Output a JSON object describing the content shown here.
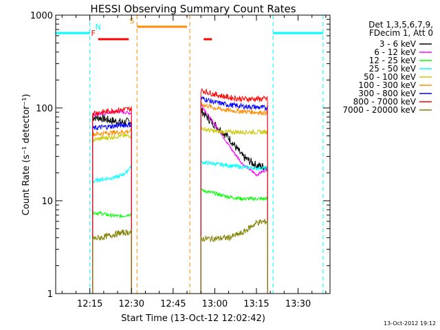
{
  "chart_data": {
    "type": "line",
    "title": "HESSI Observing Summary Count Rates",
    "xlabel": "Start Time (13-Oct-12 12:02:42)",
    "ylabel": "Count Rate (s⁻¹ detector⁻¹)",
    "yscale": "log",
    "ylim": [
      1,
      1000
    ],
    "xlim": [
      "12:02:42",
      "13:41:30"
    ],
    "yticks": [
      {
        "value": 1,
        "label": "1"
      },
      {
        "value": 10,
        "label": "10"
      },
      {
        "value": 100,
        "label": "100"
      },
      {
        "value": 1000,
        "label": "1000"
      }
    ],
    "xticks": [
      "12:15",
      "12:30",
      "12:45",
      "13:00",
      "13:15",
      "13:30"
    ],
    "legend_header": [
      "Det 1,3,5,6,7,9,",
      "FDecim 1, Att 0"
    ],
    "legend_position": "right",
    "timestamp": "13-Oct-2012 19:12",
    "series": [
      {
        "name": "3 - 6 keV",
        "color": "#000000",
        "segments": [
          {
            "x": [
              "12:16",
              "12:19",
              "12:21",
              "12:24",
              "12:27",
              "12:30"
            ],
            "y": [
              80,
              78,
              75,
              72,
              70,
              72
            ]
          },
          {
            "x": [
              "12:55",
              "12:58",
              "13:01",
              "13:05",
              "13:10",
              "13:15",
              "13:19"
            ],
            "y": [
              95,
              75,
              62,
              48,
              30,
              24,
              23
            ]
          }
        ]
      },
      {
        "name": "6 - 12 keV",
        "color": "#ff00ff",
        "segments": [
          {
            "x": [
              "12:16",
              "12:19",
              "12:21",
              "12:24",
              "12:27",
              "12:30"
            ],
            "y": [
              85,
              86,
              88,
              92,
              90,
              88
            ]
          },
          {
            "x": [
              "12:55",
              "12:58",
              "13:02",
              "13:06",
              "13:10",
              "13:15",
              "13:19"
            ],
            "y": [
              110,
              80,
              55,
              36,
              25,
              19,
              22
            ]
          }
        ]
      },
      {
        "name": "12 - 25 keV",
        "color": "#00ff00",
        "segments": [
          {
            "x": [
              "12:16",
              "12:19",
              "12:22",
              "12:26",
              "12:30"
            ],
            "y": [
              7.5,
              7.3,
              7.0,
              6.8,
              7.2
            ]
          },
          {
            "x": [
              "12:55",
              "13:00",
              "13:05",
              "13:10",
              "13:15",
              "13:19"
            ],
            "y": [
              13,
              12,
              11,
              10.5,
              10.5,
              10.5
            ]
          }
        ]
      },
      {
        "name": "25 - 50 keV",
        "color": "#00ffff",
        "segments": [
          {
            "x": [
              "12:16",
              "12:19",
              "12:22",
              "12:25",
              "12:28",
              "12:30"
            ],
            "y": [
              16,
              17,
              17.5,
              18,
              20,
              24
            ]
          },
          {
            "x": [
              "12:55",
              "13:00",
              "13:05",
              "13:10",
              "13:15",
              "13:19"
            ],
            "y": [
              26,
              25,
              24,
              23,
              22.5,
              22.5
            ]
          }
        ]
      },
      {
        "name": "50 - 100 keV",
        "color": "#c8c800",
        "segments": [
          {
            "x": [
              "12:16",
              "12:19",
              "12:22",
              "12:26",
              "12:30"
            ],
            "y": [
              45,
              47,
              48,
              50,
              50
            ]
          },
          {
            "x": [
              "12:55",
              "13:00",
              "13:05",
              "13:10",
              "13:15",
              "13:19"
            ],
            "y": [
              60,
              56,
              55,
              55,
              55,
              55
            ]
          }
        ]
      },
      {
        "name": "100 - 300 keV",
        "color": "#ff8c00",
        "segments": [
          {
            "x": [
              "12:16",
              "12:19",
              "12:22",
              "12:26",
              "12:30"
            ],
            "y": [
              52,
              53,
              54,
              55,
              56
            ]
          },
          {
            "x": [
              "12:55",
              "13:00",
              "13:05",
              "13:10",
              "13:15",
              "13:19"
            ],
            "y": [
              110,
              100,
              94,
              92,
              90,
              88
            ]
          }
        ]
      },
      {
        "name": "300 - 800 keV",
        "color": "#0000ff",
        "segments": [
          {
            "x": [
              "12:16",
              "12:19",
              "12:22",
              "12:26",
              "12:30"
            ],
            "y": [
              60,
              62,
              63,
              65,
              66
            ]
          },
          {
            "x": [
              "12:55",
              "13:00",
              "13:05",
              "13:10",
              "13:15",
              "13:19"
            ],
            "y": [
              128,
              115,
              108,
              104,
              102,
              100
            ]
          }
        ]
      },
      {
        "name": "800 - 7000 keV",
        "color": "#ff0000",
        "segments": [
          {
            "x": [
              "12:16",
              "12:19",
              "12:22",
              "12:26",
              "12:30"
            ],
            "y": [
              88,
              90,
              92,
              95,
              98
            ]
          },
          {
            "x": [
              "12:55",
              "13:00",
              "13:05",
              "13:10",
              "13:15",
              "13:19"
            ],
            "y": [
              155,
              140,
              130,
              125,
              125,
              125
            ]
          }
        ]
      },
      {
        "name": "7000 - 20000 keV",
        "color": "#808000",
        "segments": [
          {
            "x": [
              "12:16",
              "12:19",
              "12:22",
              "12:26",
              "12:30"
            ],
            "y": [
              3.9,
              4.0,
              4.2,
              4.5,
              4.6
            ]
          },
          {
            "x": [
              "12:55",
              "13:00",
              "13:05",
              "13:10",
              "13:15",
              "13:19"
            ],
            "y": [
              3.9,
              3.9,
              4.0,
              4.5,
              5.8,
              6.0
            ]
          }
        ]
      }
    ],
    "flags": [
      {
        "label": "F",
        "color": "#ff0000",
        "y": 550,
        "intervals": [
          [
            "12:18",
            "12:29"
          ],
          [
            "12:56",
            "12:59"
          ]
        ]
      },
      {
        "label": "S",
        "color": "#ff8c00",
        "y": 750,
        "intervals": [
          [
            "12:32",
            "12:50"
          ]
        ]
      },
      {
        "label": "N",
        "color": "#00ffff",
        "y": 640,
        "intervals": [
          [
            "12:02",
            "12:15"
          ],
          [
            "13:21",
            "13:39"
          ]
        ]
      }
    ],
    "markers": [
      {
        "time": "12:15",
        "color": "#00ffff"
      },
      {
        "time": "12:32",
        "color": "#ff8c00"
      },
      {
        "time": "12:51",
        "color": "#ff8c00"
      },
      {
        "time": "13:21",
        "color": "#00ffff"
      },
      {
        "time": "13:39",
        "color": "#00ffff"
      }
    ]
  }
}
